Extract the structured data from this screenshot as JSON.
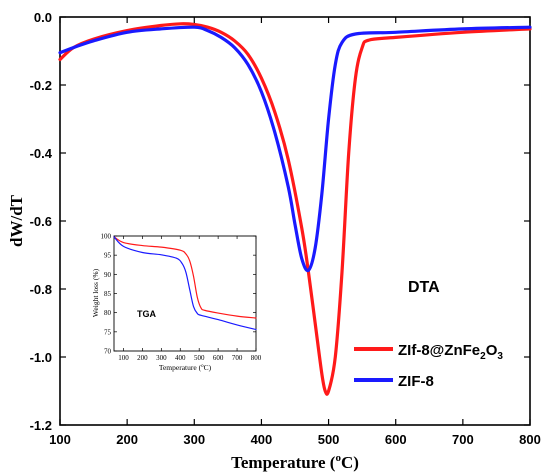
{
  "chart_data": [
    {
      "type": "line",
      "annotation": "DTA",
      "xlabel_main": "Temperature (",
      "xlabel_sup": "o",
      "xlabel_tail": "C)",
      "ylabel": "dW/dT",
      "xlim": [
        100,
        800
      ],
      "ylim": [
        -1.2,
        0.0
      ],
      "x_ticks": [
        "100",
        "200",
        "300",
        "400",
        "500",
        "600",
        "700",
        "800"
      ],
      "y_ticks": [
        "0.0",
        "-0.2",
        "-0.4",
        "-0.6",
        "-0.8",
        "-1.0",
        "-1.2"
      ],
      "legend_placement": "bottom-right",
      "series": [
        {
          "name": "ZIf-8@ZnFe2O3",
          "legend_parts": [
            "ZIf-8@ZnFe",
            "2",
            "O",
            "3"
          ],
          "color": "#ff1a1a",
          "x": [
            100,
            120,
            150,
            200,
            250,
            280,
            300,
            320,
            340,
            360,
            380,
            400,
            420,
            440,
            460,
            470,
            480,
            490,
            495,
            500,
            510,
            520,
            530,
            540,
            550,
            560,
            600,
            700,
            800
          ],
          "y": [
            -0.125,
            -0.09,
            -0.065,
            -0.04,
            -0.025,
            -0.02,
            -0.022,
            -0.03,
            -0.045,
            -0.07,
            -0.11,
            -0.18,
            -0.28,
            -0.42,
            -0.62,
            -0.75,
            -0.9,
            -1.05,
            -1.1,
            -1.1,
            -1.0,
            -0.75,
            -0.4,
            -0.18,
            -0.09,
            -0.068,
            -0.06,
            -0.045,
            -0.035
          ]
        },
        {
          "name": "ZIF-8",
          "color": "#1a1aff",
          "x": [
            100,
            120,
            150,
            200,
            250,
            300,
            320,
            340,
            360,
            380,
            400,
            420,
            440,
            450,
            460,
            470,
            480,
            490,
            500,
            510,
            520,
            540,
            600,
            700,
            800
          ],
          "y": [
            -0.105,
            -0.09,
            -0.07,
            -0.045,
            -0.035,
            -0.03,
            -0.04,
            -0.06,
            -0.09,
            -0.14,
            -0.22,
            -0.34,
            -0.5,
            -0.61,
            -0.71,
            -0.745,
            -0.68,
            -0.52,
            -0.3,
            -0.14,
            -0.075,
            -0.05,
            -0.045,
            -0.035,
            -0.03
          ]
        }
      ]
    },
    {
      "type": "line",
      "annotation": "TGA",
      "xlabel_main": "Temperature (",
      "xlabel_sup": "o",
      "xlabel_tail": "C)",
      "ylabel": "Weight loss (%)",
      "xlim": [
        50,
        800
      ],
      "ylim": [
        70,
        100
      ],
      "x_ticks": [
        "100",
        "200",
        "300",
        "400",
        "500",
        "600",
        "700",
        "800"
      ],
      "y_ticks": [
        "100",
        "95",
        "90",
        "85",
        "80",
        "75",
        "70"
      ],
      "series": [
        {
          "color": "#ff1a1a",
          "x": [
            50,
            100,
            200,
            300,
            400,
            430,
            450,
            470,
            490,
            510,
            530,
            600,
            700,
            800
          ],
          "y": [
            99.8,
            98.3,
            97.5,
            97.1,
            96.3,
            95.3,
            93.5,
            89.5,
            84.0,
            81.2,
            80.6,
            79.9,
            79.1,
            78.6
          ]
        },
        {
          "color": "#1a1aff",
          "x": [
            50,
            100,
            200,
            300,
            380,
            410,
            430,
            450,
            470,
            490,
            510,
            600,
            700,
            800
          ],
          "y": [
            99.8,
            97.3,
            95.7,
            95.1,
            94.2,
            92.8,
            90.5,
            86.0,
            81.6,
            79.8,
            79.3,
            78.2,
            76.8,
            75.6
          ]
        }
      ]
    }
  ]
}
